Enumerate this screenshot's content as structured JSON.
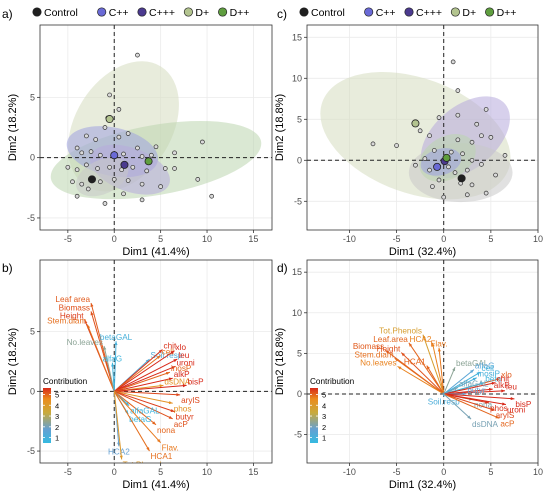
{
  "chart_data": [
    {
      "panel": "a)",
      "type": "scatter",
      "xlabel": "Dim1 (41.4%)",
      "ylabel": "Dim2 (18.2%)",
      "xlim": [
        -8,
        17
      ],
      "ylim": [
        -6,
        11
      ],
      "xticks": [
        -5,
        0,
        5,
        10,
        15
      ],
      "yticks": [
        -5,
        0,
        5
      ],
      "legend": {
        "placement": "top",
        "items": [
          {
            "name": "Control",
            "color": "#1f1f1f"
          },
          {
            "name": "C++",
            "color": "#6a6ad6"
          },
          {
            "name": "C+++",
            "color": "#4b3a8f"
          },
          {
            "name": "D+",
            "color": "#b3c48f"
          },
          {
            "name": "D++",
            "color": "#5f9e3f"
          }
        ]
      },
      "ellipses": [
        {
          "group": "D+",
          "cx": 1.0,
          "cy": 2.6,
          "rx": 7.6,
          "ry": 4.0,
          "angle": 58
        },
        {
          "group": "D++",
          "cx": 4.5,
          "cy": -0.2,
          "rx": 11.5,
          "ry": 2.9,
          "angle": 10
        },
        {
          "group": "C++",
          "cx": -0.2,
          "cy": 0.5,
          "rx": 5.0,
          "ry": 2.0,
          "angle": -12
        },
        {
          "group": "C+++",
          "cx": 1.7,
          "cy": -1.0,
          "rx": 4.5,
          "ry": 1.8,
          "angle": -20
        },
        {
          "group": "Control",
          "cx": -1.3,
          "cy": -1.6,
          "rx": 3.0,
          "ry": 1.4,
          "angle": 25
        }
      ],
      "centroids": [
        {
          "group": "Control",
          "x": -2.4,
          "y": -1.8
        },
        {
          "group": "C++",
          "x": 0.0,
          "y": 0.2
        },
        {
          "group": "C+++",
          "x": 1.1,
          "y": -0.6
        },
        {
          "group": "D+",
          "x": -0.5,
          "y": 3.2
        },
        {
          "group": "D++",
          "x": 3.7,
          "y": -0.3
        }
      ],
      "points": [
        {
          "x": 2.5,
          "y": 8.5
        },
        {
          "x": -0.5,
          "y": 5.2
        },
        {
          "x": 0.5,
          "y": 4.0
        },
        {
          "x": -0.7,
          "y": 3.3
        },
        {
          "x": -1.0,
          "y": 2.5
        },
        {
          "x": -3.0,
          "y": 1.8
        },
        {
          "x": -2.0,
          "y": 1.5
        },
        {
          "x": 0.5,
          "y": 1.7
        },
        {
          "x": 1.5,
          "y": 2.0
        },
        {
          "x": -4.0,
          "y": 0.8
        },
        {
          "x": -3.5,
          "y": 0.4
        },
        {
          "x": -2.5,
          "y": 0.5
        },
        {
          "x": -1.5,
          "y": 0.2
        },
        {
          "x": 1.0,
          "y": 0.3
        },
        {
          "x": 2.5,
          "y": 0.8
        },
        {
          "x": 3.0,
          "y": 0.1
        },
        {
          "x": 4.0,
          "y": 0.2
        },
        {
          "x": 6.5,
          "y": 0.4
        },
        {
          "x": 9.5,
          "y": 1.3
        },
        {
          "x": -5.0,
          "y": -0.8
        },
        {
          "x": -4.0,
          "y": -1.0
        },
        {
          "x": -3.0,
          "y": -0.6
        },
        {
          "x": -1.8,
          "y": -0.9
        },
        {
          "x": -0.5,
          "y": -0.8
        },
        {
          "x": 0.8,
          "y": -1.0
        },
        {
          "x": 2.0,
          "y": -0.8
        },
        {
          "x": 3.5,
          "y": -1.1
        },
        {
          "x": 5.5,
          "y": -0.9
        },
        {
          "x": 6.5,
          "y": -0.9
        },
        {
          "x": 9.0,
          "y": -1.8
        },
        {
          "x": -4.5,
          "y": -2.0
        },
        {
          "x": -3.5,
          "y": -2.2
        },
        {
          "x": -2.8,
          "y": -2.6
        },
        {
          "x": -1.5,
          "y": -2.0
        },
        {
          "x": 0.0,
          "y": -1.8
        },
        {
          "x": 1.5,
          "y": -1.9
        },
        {
          "x": 3.0,
          "y": -2.2
        },
        {
          "x": 10.5,
          "y": -3.2
        },
        {
          "x": -4.0,
          "y": -3.2
        },
        {
          "x": -1.0,
          "y": -3.8
        },
        {
          "x": 1.0,
          "y": -3.0
        },
        {
          "x": 3.0,
          "y": -3.5
        },
        {
          "x": 5.0,
          "y": -2.4
        },
        {
          "x": 4.5,
          "y": 0.9
        }
      ]
    },
    {
      "panel": "c)",
      "type": "scatter",
      "xlabel": "Dim1 (32.4%)",
      "ylabel": "Dim2 (18.8%)",
      "xlim": [
        -14.5,
        10
      ],
      "ylim": [
        -8.5,
        16.5
      ],
      "xticks": [
        -10,
        -5,
        0,
        5,
        10
      ],
      "yticks": [
        -5,
        0,
        5,
        10,
        15
      ],
      "legend": {
        "placement": "top",
        "items": [
          {
            "name": "Control",
            "color": "#1f1f1f"
          },
          {
            "name": "C++",
            "color": "#6a6ad6"
          },
          {
            "name": "C+++",
            "color": "#4b3a8f"
          },
          {
            "name": "D+",
            "color": "#b3c48f"
          },
          {
            "name": "D++",
            "color": "#5f9e3f"
          }
        ]
      },
      "ellipses": [
        {
          "group": "D+",
          "cx": -3.0,
          "cy": 3.0,
          "rx": 10.5,
          "ry": 7.0,
          "angle": -20
        },
        {
          "group": "C+++",
          "cx": 2.3,
          "cy": 2.8,
          "rx": 5.5,
          "ry": 3.8,
          "angle": 40
        },
        {
          "group": "Control",
          "cx": 1.8,
          "cy": -1.5,
          "rx": 5.5,
          "ry": 3.6,
          "angle": 0
        },
        {
          "group": "D++",
          "cx": 0.4,
          "cy": 0.3,
          "rx": 3.2,
          "ry": 2.6,
          "angle": 30
        },
        {
          "group": "C++",
          "cx": -0.3,
          "cy": -0.2,
          "rx": 2.2,
          "ry": 1.6,
          "angle": 15
        }
      ],
      "centroids": [
        {
          "group": "Control",
          "x": 1.9,
          "y": -2.2
        },
        {
          "group": "C++",
          "x": -0.7,
          "y": -0.8
        },
        {
          "group": "C+++",
          "x": 0.1,
          "y": -0.1
        },
        {
          "group": "D+",
          "x": -3.0,
          "y": 4.5
        },
        {
          "group": "D++",
          "x": 0.3,
          "y": 0.3
        }
      ],
      "points": [
        {
          "x": 1.0,
          "y": 12.0
        },
        {
          "x": 1.5,
          "y": 8.5
        },
        {
          "x": 4.5,
          "y": 6.2
        },
        {
          "x": -0.5,
          "y": 5.2
        },
        {
          "x": 3.5,
          "y": 4.4
        },
        {
          "x": -2.5,
          "y": 3.6
        },
        {
          "x": -7.5,
          "y": 2.0
        },
        {
          "x": -5.0,
          "y": 1.8
        },
        {
          "x": 1.5,
          "y": 2.5
        },
        {
          "x": 3.0,
          "y": 2.2
        },
        {
          "x": 4.0,
          "y": 3.0
        },
        {
          "x": 5.0,
          "y": 2.8
        },
        {
          "x": -1.0,
          "y": 1.2
        },
        {
          "x": 0.8,
          "y": 1.0
        },
        {
          "x": 2.0,
          "y": 0.8
        },
        {
          "x": 3.0,
          "y": 0.0
        },
        {
          "x": -2.0,
          "y": 0.2
        },
        {
          "x": -1.5,
          "y": -1.2
        },
        {
          "x": 0.5,
          "y": -0.8
        },
        {
          "x": 1.2,
          "y": -1.5
        },
        {
          "x": 2.5,
          "y": -1.2
        },
        {
          "x": 4.0,
          "y": -0.5
        },
        {
          "x": 6.5,
          "y": 0.6
        },
        {
          "x": -0.5,
          "y": -2.4
        },
        {
          "x": 1.8,
          "y": -2.8
        },
        {
          "x": 3.0,
          "y": -3.0
        },
        {
          "x": 4.5,
          "y": -4.0
        },
        {
          "x": 2.5,
          "y": -4.2
        },
        {
          "x": 0.0,
          "y": -4.5
        },
        {
          "x": -1.2,
          "y": -3.2
        },
        {
          "x": 5.5,
          "y": -1.8
        },
        {
          "x": -3.0,
          "y": -0.6
        },
        {
          "x": 1.5,
          "y": 5.5
        },
        {
          "x": -1.5,
          "y": 3.0
        }
      ]
    },
    {
      "panel": "b)",
      "type": "biplot",
      "xlabel": "Dim1 (41.4%)",
      "ylabel": "Dim2 (18.2%)",
      "xlim": [
        -8,
        17
      ],
      "ylim": [
        -6,
        11
      ],
      "xticks": [
        -5,
        0,
        5,
        10,
        15
      ],
      "yticks": [
        -5,
        0,
        5
      ],
      "colorbar": {
        "title": "Contribution",
        "ticks": [
          1,
          2,
          3,
          4,
          5
        ],
        "range": [
          0.5,
          5.6
        ],
        "placement": "bottom-left"
      },
      "vectors": [
        {
          "label": "Leaf area",
          "x": -2.5,
          "y": 7.4,
          "c": 4.5
        },
        {
          "label": "Biomass",
          "x": -2.5,
          "y": 6.7,
          "c": 4.6
        },
        {
          "label": "Height",
          "x": -3.2,
          "y": 6.0,
          "c": 4.8
        },
        {
          "label": "Stem.diam",
          "x": -2.9,
          "y": 5.6,
          "c": 4.3
        },
        {
          "label": "No.leaves",
          "x": -1.1,
          "y": 3.8,
          "c": 2.4
        },
        {
          "label": "betaGAL",
          "x": 0.2,
          "y": 4.2,
          "c": 1.4
        },
        {
          "label": "alfaG",
          "x": -0.2,
          "y": 2.4,
          "c": 1.2
        },
        {
          "label": "Soil.resp",
          "x": 3.8,
          "y": 2.7,
          "c": 1.6
        },
        {
          "label": "chit",
          "x": 5.2,
          "y": 3.5,
          "c": 4.9
        },
        {
          "label": "cell",
          "x": 5.0,
          "y": 3.0,
          "c": 4.3
        },
        {
          "label": "xlo",
          "x": 6.5,
          "y": 3.4,
          "c": 5.3
        },
        {
          "label": "leu",
          "x": 6.8,
          "y": 2.7,
          "c": 5.3
        },
        {
          "label": "uroni",
          "x": 6.6,
          "y": 2.1,
          "c": 5.1
        },
        {
          "label": "inosP",
          "x": 6.0,
          "y": 1.6,
          "c": 4.4
        },
        {
          "label": "alkP",
          "x": 6.3,
          "y": 1.1,
          "c": 5.2
        },
        {
          "label": "dsDNA",
          "x": 5.3,
          "y": 0.5,
          "c": 3.8
        },
        {
          "label": "bisP",
          "x": 7.8,
          "y": 0.5,
          "c": 5.2
        },
        {
          "label": "arylS",
          "x": 7.1,
          "y": -0.3,
          "c": 4.7
        },
        {
          "label": "phos",
          "x": 6.3,
          "y": -1.0,
          "c": 3.8
        },
        {
          "label": "butyr",
          "x": 6.5,
          "y": -1.7,
          "c": 4.8
        },
        {
          "label": "acP",
          "x": 6.3,
          "y": -2.3,
          "c": 4.6
        },
        {
          "label": "nona",
          "x": 4.5,
          "y": -2.8,
          "c": 4.4
        },
        {
          "label": "alfaGAL",
          "x": 1.6,
          "y": -1.2,
          "c": 1.2
        },
        {
          "label": "betaG",
          "x": 1.5,
          "y": -1.9,
          "c": 1.1
        },
        {
          "label": "HCA2",
          "x": 0.5,
          "y": -4.6,
          "c": 2.0
        },
        {
          "label": "Flav.",
          "x": 5.0,
          "y": -4.3,
          "c": 4.2
        },
        {
          "label": "HCA1",
          "x": 3.8,
          "y": -5.0,
          "c": 4.3
        },
        {
          "label": "Tot.Phenols",
          "x": 0.8,
          "y": -5.7,
          "c": 3.6
        }
      ]
    },
    {
      "panel": "d)",
      "type": "biplot",
      "xlabel": "Dim1 (32.4%)",
      "ylabel": "Dim2 (18.8%)",
      "xlim": [
        -14.5,
        10
      ],
      "ylim": [
        -8.5,
        16.5
      ],
      "xticks": [
        -10,
        -5,
        0,
        5,
        10
      ],
      "yticks": [
        -5,
        0,
        5,
        10,
        15
      ],
      "colorbar": {
        "title": "Contribution",
        "ticks": [
          1,
          2,
          3,
          4,
          5
        ],
        "range": [
          0.5,
          5.6
        ],
        "placement": "bottom-left"
      },
      "vectors": [
        {
          "label": "Tot.Phenols",
          "x": -2.2,
          "y": 7.3,
          "c": 3.4
        },
        {
          "label": "Leaf.area",
          "x": -3.7,
          "y": 6.3,
          "c": 4.4
        },
        {
          "label": "HCA2",
          "x": -1.2,
          "y": 6.3,
          "c": 4.1
        },
        {
          "label": "Biomass",
          "x": -6.2,
          "y": 5.4,
          "c": 4.5
        },
        {
          "label": "Height",
          "x": -4.5,
          "y": 5.1,
          "c": 4.6
        },
        {
          "label": "Flav.",
          "x": -0.5,
          "y": 5.7,
          "c": 4.2
        },
        {
          "label": "Stem.diam",
          "x": -5.2,
          "y": 4.4,
          "c": 4.3
        },
        {
          "label": "HCA1",
          "x": -1.8,
          "y": 3.5,
          "c": 4.4
        },
        {
          "label": "No.leaves",
          "x": -4.9,
          "y": 3.4,
          "c": 4.1
        },
        {
          "label": "betaGAL",
          "x": 1.2,
          "y": 3.3,
          "c": 2.4
        },
        {
          "label": "alfaG",
          "x": 3.2,
          "y": 3.0,
          "c": 1.8
        },
        {
          "label": "cell",
          "x": 3.9,
          "y": 2.7,
          "c": 1.3
        },
        {
          "label": "inosiP",
          "x": 3.5,
          "y": 2.0,
          "c": 1.4
        },
        {
          "label": "xlo",
          "x": 6.0,
          "y": 1.9,
          "c": 4.5
        },
        {
          "label": "beta",
          "x": 4.3,
          "y": 1.4,
          "c": 1.2
        },
        {
          "label": "chit",
          "x": 5.5,
          "y": 1.4,
          "c": 5.3
        },
        {
          "label": "alfaGAL",
          "x": 1.5,
          "y": 0.8,
          "c": 2.2
        },
        {
          "label": "alkP",
          "x": 5.2,
          "y": 0.6,
          "c": 5.1
        },
        {
          "label": "leu",
          "x": 6.5,
          "y": 0.4,
          "c": 5.4
        },
        {
          "label": "butyr",
          "x": 2.4,
          "y": 0.0,
          "c": 2.0
        },
        {
          "label": "Soil.resp",
          "x": 0.0,
          "y": -0.3,
          "c": 1.5
        },
        {
          "label": "nona",
          "x": 3.1,
          "y": -0.7,
          "c": 2.3
        },
        {
          "label": "bisP",
          "x": 7.5,
          "y": -0.6,
          "c": 5.3
        },
        {
          "label": "phos",
          "x": 4.8,
          "y": -1.1,
          "c": 4.9
        },
        {
          "label": "uroni",
          "x": 6.6,
          "y": -1.3,
          "c": 5.0
        },
        {
          "label": "arylS",
          "x": 5.4,
          "y": -2.0,
          "c": 4.7
        },
        {
          "label": "acP",
          "x": 5.9,
          "y": -3.0,
          "c": 4.4
        },
        {
          "label": "dsDNA",
          "x": 2.9,
          "y": -3.1,
          "c": 2.2
        }
      ]
    }
  ]
}
